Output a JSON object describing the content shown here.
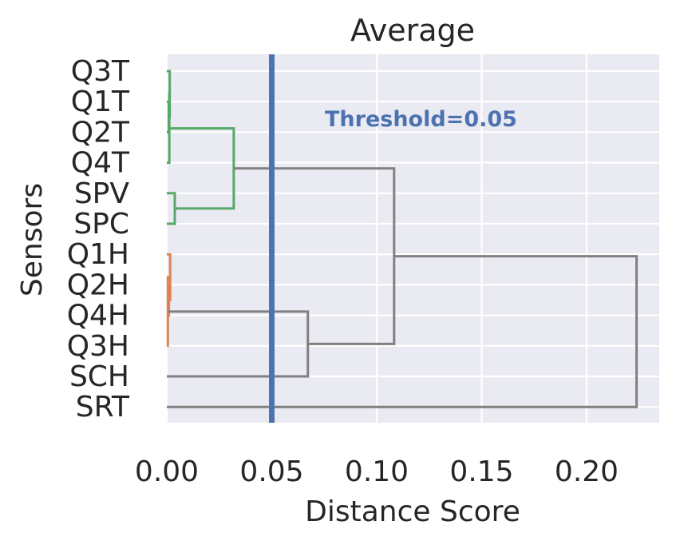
{
  "chart_data": {
    "type": "dendrogram",
    "title": "Average",
    "xlabel": "Distance Score",
    "ylabel": "Sensors",
    "xlim": [
      0,
      0.235
    ],
    "x_ticks": [
      0.0,
      0.05,
      0.1,
      0.15,
      0.2
    ],
    "x_tick_labels": [
      "0.00",
      "0.05",
      "0.10",
      "0.15",
      "0.20"
    ],
    "leaves": [
      "Q3T",
      "Q1T",
      "Q2T",
      "Q4T",
      "SPV",
      "SPC",
      "Q1H",
      "Q2H",
      "Q4H",
      "Q3H",
      "SCH",
      "SRT"
    ],
    "threshold": {
      "value": 0.05,
      "label": "Threshold=0.05",
      "color": "#4c72b0"
    },
    "links": [
      {
        "a": "Q1T",
        "b": "Q2T",
        "height": 0.0009,
        "color": "#55a868"
      },
      {
        "a": "Q3T",
        "b": "(Q1T,Q2T)",
        "height": 0.0014,
        "color": "#55a868"
      },
      {
        "a": "(Q3T,Q1T,Q2T)",
        "b": "Q4T",
        "height": 0.0012,
        "color": "#55a868"
      },
      {
        "a": "SPV",
        "b": "SPC",
        "height": 0.0038,
        "color": "#55a868"
      },
      {
        "a": "(Q1T..Q4T)",
        "b": "(SPV,SPC)",
        "height": 0.0319,
        "color": "#55a868"
      },
      {
        "a": "Q2H",
        "b": "Q4H",
        "height": 0.001,
        "color": "#dd8452"
      },
      {
        "a": "Q1H",
        "b": "(Q2H,Q4H)",
        "height": 0.0016,
        "color": "#dd8452"
      },
      {
        "a": "(Q1H,Q2H,Q4H)",
        "b": "Q3H",
        "height": 0.0005,
        "color": "#dd8452"
      },
      {
        "a": "(Q1H..Q3H)",
        "b": "SCH",
        "height": 0.0672,
        "color": "#808080"
      },
      {
        "a": "(T,SP)",
        "b": "(H,SCH)",
        "height": 0.1083,
        "color": "#808080"
      },
      {
        "a": "(all but SRT)",
        "b": "SRT",
        "height": 0.2238,
        "color": "#808080"
      }
    ],
    "grid": true,
    "legend": "none"
  }
}
